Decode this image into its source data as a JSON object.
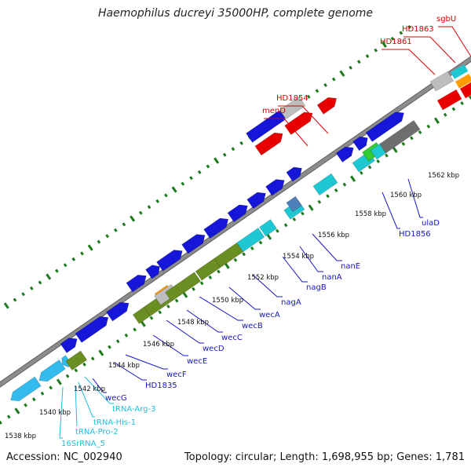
{
  "title": "Haemophilus ducreyi 35000HP, complete genome",
  "footer": {
    "accession": "Accession: NC_002940",
    "topology": "Topology: circular; Length: 1,698,955 bp; Genes: 1,781"
  },
  "colors": {
    "highlight_label": "#d40000",
    "gene_label": "#1515c8",
    "rna_label": "#22bde0",
    "backbone": "#8c8c8c",
    "dots": "#1d7a1d",
    "blue": "#1616d8",
    "cyan": "#1ec8d2",
    "olive": "#6b8e23",
    "red": "#e80000",
    "gray": "#bdbdbd",
    "darkgray": "#6e6e6e",
    "orange": "#ff9d00",
    "green": "#33cc33",
    "lightblue": "#33bbee",
    "steelblue": "#4f7fb8"
  },
  "scale": {
    "ticks": [
      "1538 kbp",
      "1540 kbp",
      "1542 kbp",
      "1544 kbp",
      "1546 kbp",
      "1548 kbp",
      "1550 kbp",
      "1552 kbp",
      "1554 kbp",
      "1556 kbp",
      "1558 kbp",
      "1560 kbp",
      "1562 kbp"
    ]
  },
  "gene_labels": [
    {
      "text": "16SrRNA_5",
      "kind": "rna"
    },
    {
      "text": "tRNA-Pro-2",
      "kind": "rna"
    },
    {
      "text": "tRNA-His-1",
      "kind": "rna"
    },
    {
      "text": "tRNA-Arg-3",
      "kind": "rna"
    },
    {
      "text": "wecG",
      "kind": "gene"
    },
    {
      "text": "HD1835",
      "kind": "gene"
    },
    {
      "text": "wecF",
      "kind": "gene"
    },
    {
      "text": "wecE",
      "kind": "gene"
    },
    {
      "text": "wecD",
      "kind": "gene"
    },
    {
      "text": "wecC",
      "kind": "gene"
    },
    {
      "text": "wecB",
      "kind": "gene"
    },
    {
      "text": "wecA",
      "kind": "gene"
    },
    {
      "text": "nagA",
      "kind": "gene"
    },
    {
      "text": "nagB",
      "kind": "gene"
    },
    {
      "text": "nanA",
      "kind": "gene"
    },
    {
      "text": "nanE",
      "kind": "gene"
    },
    {
      "text": "HD1856",
      "kind": "gene"
    },
    {
      "text": "ulaD",
      "kind": "gene"
    },
    {
      "text": "menD",
      "kind": "highlight"
    },
    {
      "text": "HD1854",
      "kind": "highlight"
    },
    {
      "text": "HD1861",
      "kind": "highlight"
    },
    {
      "text": "HD1863",
      "kind": "highlight"
    },
    {
      "text": "sgbU",
      "kind": "highlight"
    }
  ]
}
